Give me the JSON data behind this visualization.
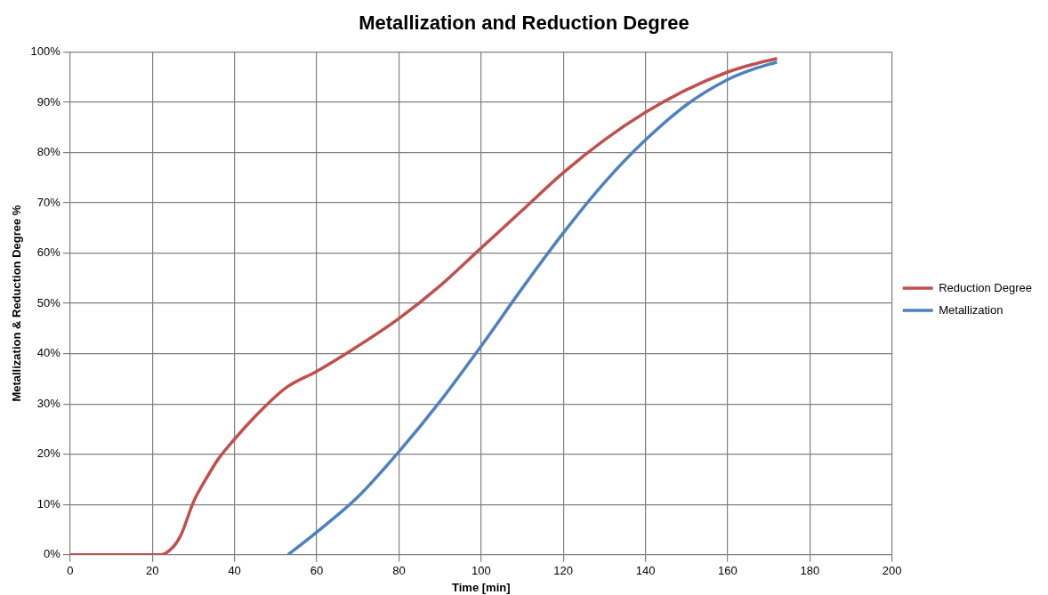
{
  "chart_data": {
    "type": "line",
    "title": "Metallization and Reduction Degree",
    "xlabel": "Time [min]",
    "ylabel": "Metallization & Reduction Degree %",
    "xlim": [
      0,
      200
    ],
    "xticks": [
      0,
      20,
      40,
      60,
      80,
      100,
      120,
      140,
      160,
      180,
      200
    ],
    "ylim": [
      0,
      100
    ],
    "yticks": [
      {
        "value": 0,
        "label": "0%"
      },
      {
        "value": 10,
        "label": "10%"
      },
      {
        "value": 20,
        "label": "20%"
      },
      {
        "value": 30,
        "label": "30%"
      },
      {
        "value": 40,
        "label": "40%"
      },
      {
        "value": 50,
        "label": "50%"
      },
      {
        "value": 60,
        "label": "60%"
      },
      {
        "value": 70,
        "label": "70%"
      },
      {
        "value": 80,
        "label": "80%"
      },
      {
        "value": 90,
        "label": "90%"
      },
      {
        "value": 100,
        "label": "100%"
      }
    ],
    "grid": true,
    "legend": "right",
    "marker": "none",
    "line_style": "solid",
    "series": [
      {
        "name": "Reduction Degree",
        "color": "#c0504d",
        "x": [
          0,
          8,
          22,
          25,
          27,
          30,
          33,
          36,
          40,
          45,
          50,
          53,
          60,
          70,
          80,
          90,
          100,
          110,
          120,
          130,
          140,
          150,
          160,
          166,
          172
        ],
        "values": [
          0,
          0,
          0,
          1.5,
          4,
          10.5,
          15,
          19,
          23,
          27.5,
          31.5,
          33.5,
          36.5,
          41.5,
          47,
          53.5,
          61,
          68.5,
          76,
          82.5,
          88,
          92.5,
          96,
          97.5,
          98.7
        ]
      },
      {
        "name": "Metallization",
        "color": "#4f81bd",
        "x": [
          53,
          60,
          70,
          80,
          90,
          100,
          110,
          120,
          130,
          140,
          150,
          160,
          166,
          172
        ],
        "values": [
          0,
          4.5,
          11.5,
          20.5,
          30.5,
          41.5,
          53,
          64,
          74,
          82.5,
          89.5,
          94.5,
          96.5,
          98
        ]
      }
    ]
  }
}
